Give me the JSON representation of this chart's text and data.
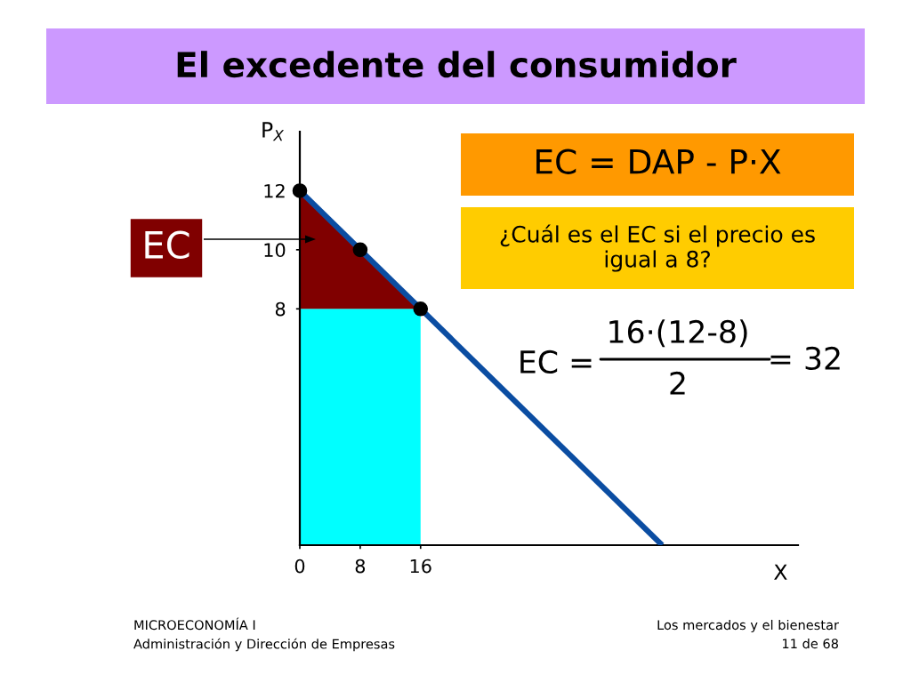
{
  "chart_data": {
    "type": "line",
    "title": "El excedente del consumidor",
    "xlabel": "X",
    "ylabel": "P$_{X}$",
    "xlim": [
      0,
      66
    ],
    "ylim": [
      0,
      14
    ],
    "xticks": [
      0,
      8,
      16
    ],
    "yticks": [
      8,
      10,
      12
    ],
    "stacked": true,
    "series": [
      {
        "type": "area",
        "color": "#00ffff",
        "x": [
          0,
          16
        ],
        "values": [
          8,
          8
        ]
      },
      {
        "type": "area",
        "color": "#800000",
        "x": [
          0,
          16
        ],
        "values": [
          4,
          0
        ]
      },
      {
        "color": "#0b4da2",
        "x": [
          0,
          48
        ],
        "values": [
          12,
          0
        ],
        "line_style": "solid"
      },
      {
        "type": "scatter",
        "color": "#000000",
        "x": [
          0,
          8,
          16
        ],
        "values": [
          12,
          10,
          8
        ],
        "marker": "circle"
      }
    ],
    "annotations": [
      "EC",
      "EC = DAP - P·X",
      "¿Cuál es el EC si el precio es igual a 8?",
      "EC =",
      "16·(12-8)",
      "2",
      "= 32",
      "MICROECONOMÍA I",
      "Administración y Dirección de Empresas",
      "Los mercados y el bienestar",
      "11 de 68"
    ]
  }
}
